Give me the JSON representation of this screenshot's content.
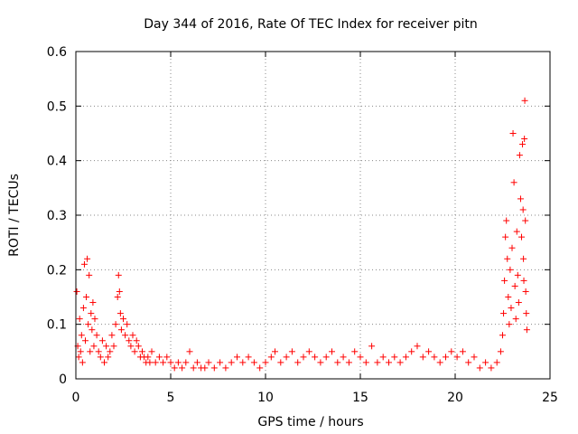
{
  "chart_data": {
    "type": "scatter",
    "title": "Day 344 of 2016, Rate Of TEC Index for receiver pitn",
    "xlabel": "GPS time / hours",
    "ylabel": "ROTI / TECUs",
    "xlim": [
      0,
      25
    ],
    "ylim": [
      0,
      0.6
    ],
    "xticks": [
      0,
      5,
      10,
      15,
      20,
      25
    ],
    "xtick_labels": [
      "0",
      "5",
      "10",
      "15",
      "20",
      "25"
    ],
    "yticks": [
      0,
      0.1,
      0.2,
      0.3,
      0.4,
      0.5,
      0.6
    ],
    "ytick_labels": [
      "0",
      "0.1",
      "0.2",
      "0.3",
      "0.4",
      "0.5",
      "0.6"
    ],
    "grid": true,
    "marker": "+",
    "marker_color": "#ff0000",
    "series": [
      {
        "points": [
          [
            0.05,
            0.16
          ],
          [
            0.1,
            0.06
          ],
          [
            0.15,
            0.04
          ],
          [
            0.2,
            0.11
          ],
          [
            0.25,
            0.05
          ],
          [
            0.3,
            0.08
          ],
          [
            0.35,
            0.03
          ],
          [
            0.4,
            0.13
          ],
          [
            0.45,
            0.21
          ],
          [
            0.5,
            0.07
          ],
          [
            0.55,
            0.15
          ],
          [
            0.6,
            0.22
          ],
          [
            0.65,
            0.1
          ],
          [
            0.7,
            0.19
          ],
          [
            0.75,
            0.05
          ],
          [
            0.8,
            0.12
          ],
          [
            0.85,
            0.09
          ],
          [
            0.9,
            0.14
          ],
          [
            0.95,
            0.06
          ],
          [
            1.0,
            0.11
          ],
          [
            1.1,
            0.08
          ],
          [
            1.2,
            0.05
          ],
          [
            1.3,
            0.04
          ],
          [
            1.4,
            0.07
          ],
          [
            1.5,
            0.03
          ],
          [
            1.6,
            0.06
          ],
          [
            1.7,
            0.04
          ],
          [
            1.8,
            0.05
          ],
          [
            1.9,
            0.08
          ],
          [
            2.0,
            0.06
          ],
          [
            2.1,
            0.1
          ],
          [
            2.2,
            0.15
          ],
          [
            2.25,
            0.19
          ],
          [
            2.3,
            0.16
          ],
          [
            2.35,
            0.12
          ],
          [
            2.4,
            0.09
          ],
          [
            2.5,
            0.11
          ],
          [
            2.6,
            0.08
          ],
          [
            2.7,
            0.1
          ],
          [
            2.8,
            0.07
          ],
          [
            2.9,
            0.06
          ],
          [
            3.0,
            0.08
          ],
          [
            3.1,
            0.05
          ],
          [
            3.2,
            0.07
          ],
          [
            3.3,
            0.06
          ],
          [
            3.4,
            0.04
          ],
          [
            3.5,
            0.05
          ],
          [
            3.6,
            0.04
          ],
          [
            3.7,
            0.03
          ],
          [
            3.8,
            0.04
          ],
          [
            3.9,
            0.03
          ],
          [
            4.0,
            0.05
          ],
          [
            4.2,
            0.03
          ],
          [
            4.4,
            0.04
          ],
          [
            4.6,
            0.03
          ],
          [
            4.8,
            0.04
          ],
          [
            5.0,
            0.03
          ],
          [
            5.2,
            0.02
          ],
          [
            5.4,
            0.03
          ],
          [
            5.6,
            0.02
          ],
          [
            5.8,
            0.03
          ],
          [
            6.0,
            0.05
          ],
          [
            6.2,
            0.02
          ],
          [
            6.4,
            0.03
          ],
          [
            6.6,
            0.02
          ],
          [
            6.8,
            0.02
          ],
          [
            7.0,
            0.03
          ],
          [
            7.3,
            0.02
          ],
          [
            7.6,
            0.03
          ],
          [
            7.9,
            0.02
          ],
          [
            8.2,
            0.03
          ],
          [
            8.5,
            0.04
          ],
          [
            8.8,
            0.03
          ],
          [
            9.1,
            0.04
          ],
          [
            9.4,
            0.03
          ],
          [
            9.7,
            0.02
          ],
          [
            10.0,
            0.03
          ],
          [
            10.3,
            0.04
          ],
          [
            10.5,
            0.05
          ],
          [
            10.8,
            0.03
          ],
          [
            11.1,
            0.04
          ],
          [
            11.4,
            0.05
          ],
          [
            11.7,
            0.03
          ],
          [
            12.0,
            0.04
          ],
          [
            12.3,
            0.05
          ],
          [
            12.6,
            0.04
          ],
          [
            12.9,
            0.03
          ],
          [
            13.2,
            0.04
          ],
          [
            13.5,
            0.05
          ],
          [
            13.8,
            0.03
          ],
          [
            14.1,
            0.04
          ],
          [
            14.4,
            0.03
          ],
          [
            14.7,
            0.05
          ],
          [
            15.0,
            0.04
          ],
          [
            15.3,
            0.03
          ],
          [
            15.6,
            0.06
          ],
          [
            15.9,
            0.03
          ],
          [
            16.2,
            0.04
          ],
          [
            16.5,
            0.03
          ],
          [
            16.8,
            0.04
          ],
          [
            17.1,
            0.03
          ],
          [
            17.4,
            0.04
          ],
          [
            17.7,
            0.05
          ],
          [
            18.0,
            0.06
          ],
          [
            18.3,
            0.04
          ],
          [
            18.6,
            0.05
          ],
          [
            18.9,
            0.04
          ],
          [
            19.2,
            0.03
          ],
          [
            19.5,
            0.04
          ],
          [
            19.8,
            0.05
          ],
          [
            20.1,
            0.04
          ],
          [
            20.4,
            0.05
          ],
          [
            20.7,
            0.03
          ],
          [
            21.0,
            0.04
          ],
          [
            21.3,
            0.02
          ],
          [
            21.6,
            0.03
          ],
          [
            21.9,
            0.02
          ],
          [
            22.2,
            0.03
          ],
          [
            22.4,
            0.05
          ],
          [
            22.5,
            0.08
          ],
          [
            22.55,
            0.12
          ],
          [
            22.6,
            0.18
          ],
          [
            22.65,
            0.26
          ],
          [
            22.7,
            0.29
          ],
          [
            22.75,
            0.22
          ],
          [
            22.8,
            0.15
          ],
          [
            22.85,
            0.1
          ],
          [
            22.9,
            0.2
          ],
          [
            22.95,
            0.13
          ],
          [
            23.0,
            0.24
          ],
          [
            23.05,
            0.45
          ],
          [
            23.1,
            0.36
          ],
          [
            23.15,
            0.17
          ],
          [
            23.2,
            0.11
          ],
          [
            23.25,
            0.27
          ],
          [
            23.3,
            0.19
          ],
          [
            23.35,
            0.14
          ],
          [
            23.4,
            0.41
          ],
          [
            23.45,
            0.33
          ],
          [
            23.5,
            0.26
          ],
          [
            23.55,
            0.43
          ],
          [
            23.58,
            0.31
          ],
          [
            23.6,
            0.22
          ],
          [
            23.62,
            0.18
          ],
          [
            23.65,
            0.44
          ],
          [
            23.67,
            0.51
          ],
          [
            23.7,
            0.29
          ],
          [
            23.72,
            0.16
          ],
          [
            23.75,
            0.12
          ],
          [
            23.78,
            0.09
          ]
        ]
      }
    ]
  }
}
